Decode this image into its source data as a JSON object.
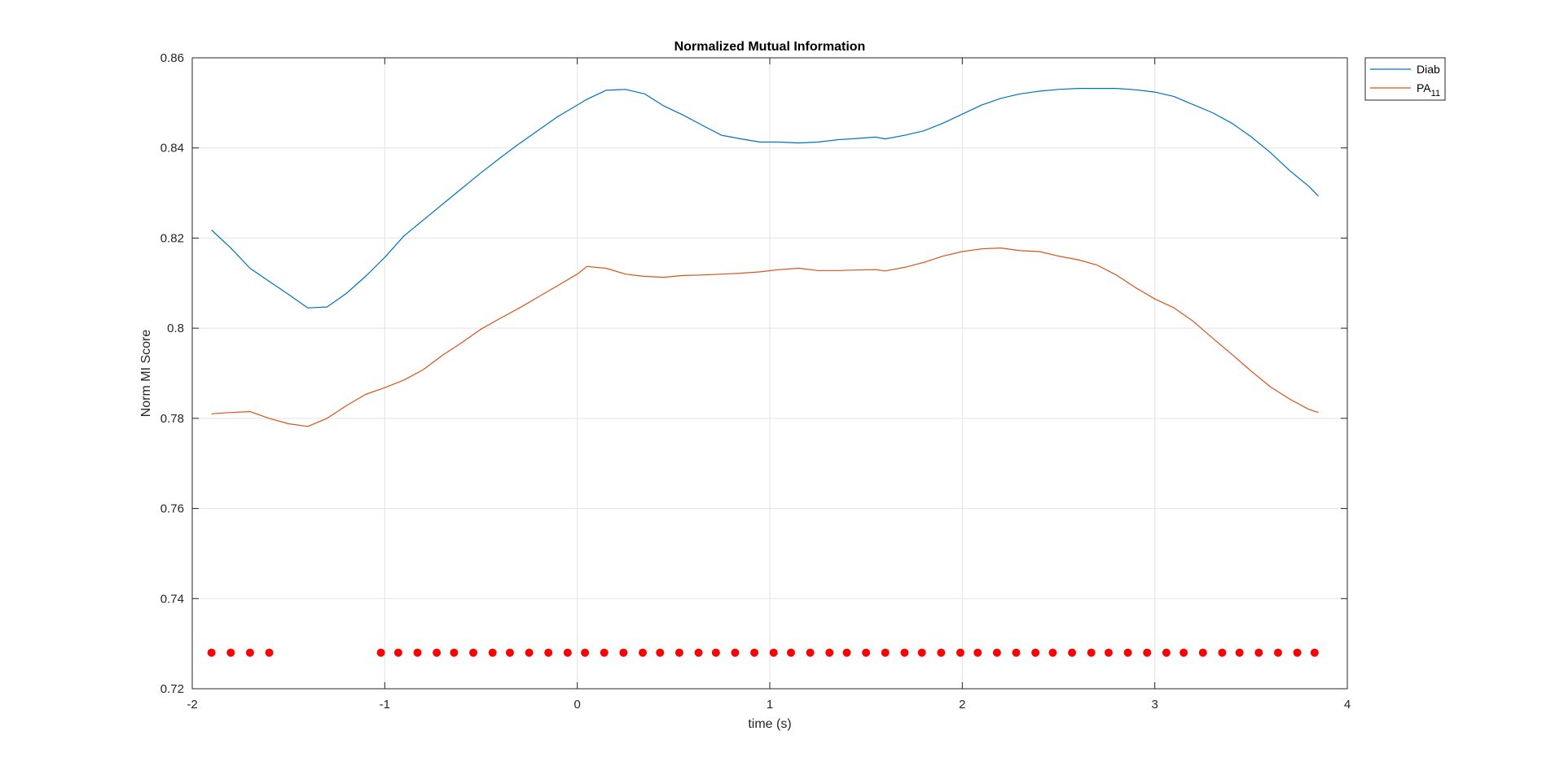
{
  "chart_data": {
    "type": "line",
    "title": "Normalized Mutual Information",
    "xlabel": "time (s)",
    "ylabel": "Norm MI Score",
    "xlim": [
      -2,
      4
    ],
    "ylim": [
      0.72,
      0.86
    ],
    "xticks": [
      -2,
      -1,
      0,
      1,
      2,
      3,
      4
    ],
    "xtick_labels": [
      "-2",
      "-1",
      "0",
      "1",
      "2",
      "3",
      "4"
    ],
    "yticks": [
      0.72,
      0.74,
      0.76,
      0.78,
      0.8,
      0.82,
      0.84,
      0.86
    ],
    "ytick_labels": [
      "0.72",
      "0.74",
      "0.76",
      "0.78",
      "0.8",
      "0.82",
      "0.84",
      "0.86"
    ],
    "grid": true,
    "legend_position": "top-right-outside",
    "series": [
      {
        "name": "Diab",
        "color": "#0072BD",
        "x": [
          -1.9,
          -1.8,
          -1.7,
          -1.6,
          -1.5,
          -1.4,
          -1.3,
          -1.2,
          -1.1,
          -1.0,
          -0.9,
          -0.8,
          -0.7,
          -0.6,
          -0.5,
          -0.4,
          -0.3,
          -0.2,
          -0.1,
          0.0,
          0.05,
          0.15,
          0.25,
          0.35,
          0.45,
          0.55,
          0.65,
          0.75,
          0.85,
          0.95,
          1.05,
          1.15,
          1.25,
          1.35,
          1.45,
          1.55,
          1.6,
          1.7,
          1.8,
          1.9,
          2.0,
          2.1,
          2.2,
          2.3,
          2.4,
          2.5,
          2.6,
          2.7,
          2.8,
          2.9,
          3.0,
          3.1,
          3.2,
          3.3,
          3.4,
          3.5,
          3.6,
          3.7,
          3.8,
          3.85
        ],
        "values": [
          0.8218,
          0.8178,
          0.8133,
          0.8104,
          0.8075,
          0.8045,
          0.8047,
          0.8077,
          0.8115,
          0.8157,
          0.8205,
          0.824,
          0.8275,
          0.831,
          0.8345,
          0.8378,
          0.841,
          0.844,
          0.847,
          0.8495,
          0.8508,
          0.8528,
          0.853,
          0.852,
          0.8493,
          0.8473,
          0.845,
          0.8428,
          0.842,
          0.8413,
          0.8413,
          0.8411,
          0.8413,
          0.8418,
          0.8421,
          0.8424,
          0.842,
          0.8428,
          0.8438,
          0.8455,
          0.8475,
          0.8495,
          0.851,
          0.852,
          0.8526,
          0.853,
          0.8532,
          0.8532,
          0.8532,
          0.8529,
          0.8524,
          0.8514,
          0.8496,
          0.8478,
          0.8455,
          0.8425,
          0.839,
          0.835,
          0.8315,
          0.8293
        ]
      },
      {
        "name": "PA",
        "name_subscript": "11",
        "color": "#D95319",
        "x": [
          -1.9,
          -1.8,
          -1.7,
          -1.6,
          -1.5,
          -1.4,
          -1.3,
          -1.2,
          -1.1,
          -1.0,
          -0.9,
          -0.8,
          -0.7,
          -0.6,
          -0.5,
          -0.4,
          -0.3,
          -0.2,
          -0.1,
          0.0,
          0.05,
          0.15,
          0.25,
          0.35,
          0.45,
          0.55,
          0.65,
          0.75,
          0.85,
          0.95,
          1.05,
          1.15,
          1.25,
          1.35,
          1.45,
          1.55,
          1.6,
          1.7,
          1.8,
          1.9,
          2.0,
          2.1,
          2.2,
          2.3,
          2.4,
          2.5,
          2.6,
          2.7,
          2.8,
          2.9,
          3.0,
          3.1,
          3.2,
          3.3,
          3.4,
          3.5,
          3.6,
          3.7,
          3.8,
          3.85
        ],
        "values": [
          0.781,
          0.7813,
          0.7815,
          0.78,
          0.7788,
          0.7782,
          0.78,
          0.7828,
          0.7853,
          0.7868,
          0.7885,
          0.7908,
          0.794,
          0.7968,
          0.7998,
          0.8022,
          0.8045,
          0.807,
          0.8095,
          0.812,
          0.8137,
          0.8133,
          0.812,
          0.8115,
          0.8113,
          0.8117,
          0.8118,
          0.812,
          0.8122,
          0.8125,
          0.813,
          0.8133,
          0.8128,
          0.8128,
          0.8129,
          0.813,
          0.8127,
          0.8135,
          0.8146,
          0.816,
          0.817,
          0.8176,
          0.8178,
          0.8172,
          0.817,
          0.816,
          0.8152,
          0.814,
          0.8118,
          0.809,
          0.8065,
          0.8045,
          0.8015,
          0.7978,
          0.7942,
          0.7905,
          0.787,
          0.7843,
          0.782,
          0.7813
        ]
      }
    ],
    "markers": {
      "color": "#FF0000",
      "y": 0.728,
      "x": [
        -1.9,
        -1.8,
        -1.7,
        -1.6,
        -1.02,
        -0.93,
        -0.83,
        -0.73,
        -0.64,
        -0.54,
        -0.44,
        -0.35,
        -0.25,
        -0.15,
        -0.05,
        0.04,
        0.14,
        0.24,
        0.34,
        0.43,
        0.53,
        0.63,
        0.72,
        0.82,
        0.92,
        1.02,
        1.11,
        1.21,
        1.31,
        1.4,
        1.5,
        1.6,
        1.7,
        1.79,
        1.89,
        1.99,
        2.08,
        2.18,
        2.28,
        2.38,
        2.47,
        2.57,
        2.67,
        2.76,
        2.86,
        2.96,
        3.06,
        3.15,
        3.25,
        3.35,
        3.44,
        3.54,
        3.64,
        3.74,
        3.83
      ]
    }
  }
}
